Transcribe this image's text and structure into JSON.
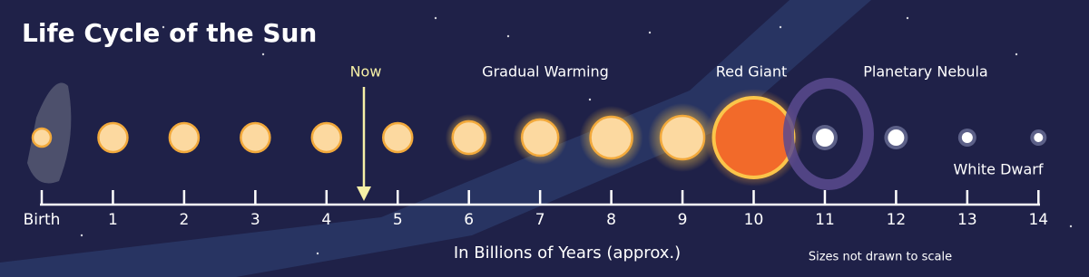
{
  "header": {
    "title": "Life Cycle of the Sun"
  },
  "annotations": {
    "now": "Now",
    "gradual_warming": "Gradual Warming",
    "red_giant": "Red Giant",
    "planetary_nebula": "Planetary Nebula",
    "white_dwarf": "White Dwarf"
  },
  "timeline": {
    "ticks": [
      "Birth",
      "1",
      "2",
      "3",
      "4",
      "5",
      "6",
      "7",
      "8",
      "9",
      "10",
      "11",
      "12",
      "13",
      "14"
    ],
    "axis_title": "In Billions of Years (approx.)"
  },
  "footer": {
    "note": "Sizes not drawn to scale"
  }
}
